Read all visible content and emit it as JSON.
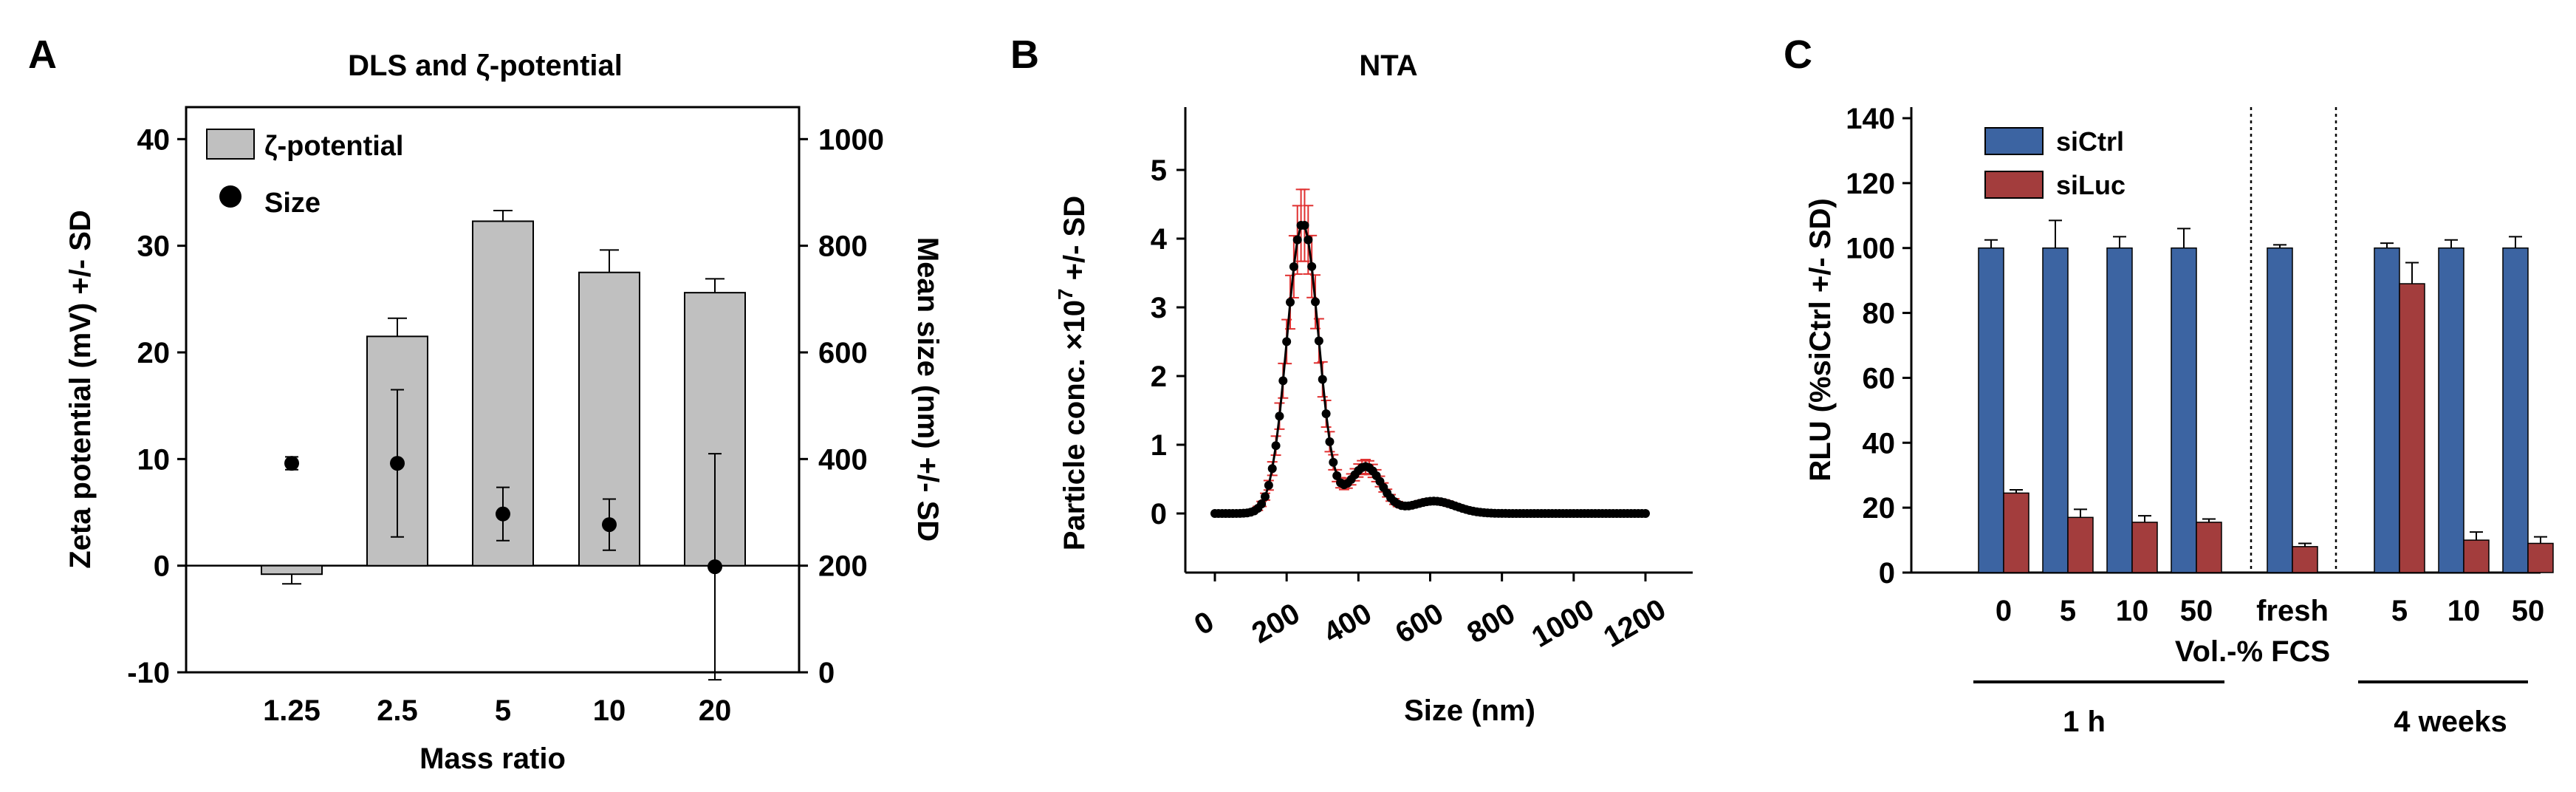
{
  "panels": {
    "a": {
      "letter": "A",
      "title": "DLS and ζ-potential",
      "ylabel_left": "Zeta potential (mV) +/- SD",
      "ylabel_right": "Mean size (nm) +/- SD",
      "xlabel": "Mass ratio",
      "legend": {
        "bar": "ζ-potential",
        "dot": "Size"
      }
    },
    "b": {
      "letter": "B",
      "title": "NTA",
      "ylabel_main": "Particle conc. ×10",
      "ylabel_sup": "7",
      "ylabel_tail": " +/- SD",
      "xlabel": "Size (nm)"
    },
    "c": {
      "letter": "C",
      "ylabel": "RLU (%siCtrl +/- SD)",
      "xlabel": "Vol.-% FCS",
      "group_1h": "1 h",
      "group_4w": "4 weeks",
      "legend": {
        "ctrl": "siCtrl",
        "luc": "siLuc"
      }
    }
  },
  "colors": {
    "bar_gray": "#c0c0c0",
    "dot": "#000000",
    "siCtrl": "#3c64a2",
    "siLuc": "#a33d3d",
    "nta_line": "#000000",
    "nta_err": "#e03030"
  },
  "chart_data": [
    {
      "id": "A",
      "type": "bar",
      "title": "DLS and ζ-potential",
      "xlabel": "Mass ratio",
      "categories": [
        "1.25",
        "2.5",
        "5",
        "10",
        "20"
      ],
      "y_left": {
        "label": "Zeta potential (mV) +/- SD",
        "lim": [
          -10,
          43
        ],
        "ticks": [
          -10,
          0,
          10,
          20,
          30,
          40
        ]
      },
      "y_right": {
        "label": "Mean size (nm) +/- SD",
        "lim": [
          0,
          1060
        ],
        "ticks": [
          0,
          200,
          400,
          600,
          800,
          1000
        ]
      },
      "series": [
        {
          "name": "ζ-potential",
          "type": "bar",
          "axis": "left",
          "values": [
            -0.8,
            21.5,
            32.3,
            27.5,
            25.6
          ],
          "err": [
            0.9,
            1.7,
            1.0,
            2.1,
            1.3
          ]
        },
        {
          "name": "Size",
          "type": "scatter",
          "axis": "right",
          "values": [
            392,
            392,
            297,
            277,
            198
          ],
          "err": [
            12,
            138,
            50,
            48,
            212
          ]
        }
      ],
      "legend_position": "top-left"
    },
    {
      "id": "B",
      "type": "line",
      "title": "NTA",
      "xlabel": "Size (nm)",
      "ylabel": "Particle conc. ×10^7 +/- SD",
      "xlim": [
        0,
        1200
      ],
      "ylim": [
        -0.9,
        5.8
      ],
      "xticks": [
        0,
        200,
        400,
        600,
        800,
        1000,
        1200
      ],
      "yticks": [
        0,
        1,
        2,
        3,
        4,
        5
      ],
      "peaks": [
        {
          "center": 245,
          "height": 4.22,
          "width": 44
        },
        {
          "center": 420,
          "height": 0.68,
          "width": 45
        },
        {
          "center": 610,
          "height": 0.18,
          "width": 60
        }
      ],
      "x_range": [
        0,
        1200
      ],
      "x_step": 10
    },
    {
      "id": "C",
      "type": "bar",
      "ylabel": "RLU (%siCtrl +/- SD)",
      "xlabel": "Vol.-% FCS",
      "ylim": [
        0,
        142
      ],
      "yticks": [
        0,
        20,
        40,
        60,
        80,
        100,
        120,
        140
      ],
      "categories": [
        "0",
        "5",
        "10",
        "50",
        "fresh",
        "5",
        "10",
        "50"
      ],
      "groups": [
        {
          "label": "1 h",
          "categories": [
            "0",
            "5",
            "10",
            "50"
          ]
        },
        {
          "label": "4 weeks",
          "categories": [
            "5",
            "10",
            "50"
          ]
        }
      ],
      "series": [
        {
          "name": "siCtrl",
          "values": [
            100,
            100,
            100,
            100,
            100,
            100,
            100,
            100
          ],
          "err": [
            2.5,
            8.5,
            3.5,
            6.0,
            1.0,
            1.5,
            2.5,
            3.5
          ]
        },
        {
          "name": "siLuc",
          "values": [
            24.5,
            17,
            15.5,
            15.5,
            8,
            89,
            10,
            9
          ],
          "err": [
            1.0,
            2.5,
            2.0,
            1.0,
            1.0,
            6.5,
            2.5,
            2.0
          ]
        }
      ],
      "legend_position": "top-left"
    }
  ]
}
